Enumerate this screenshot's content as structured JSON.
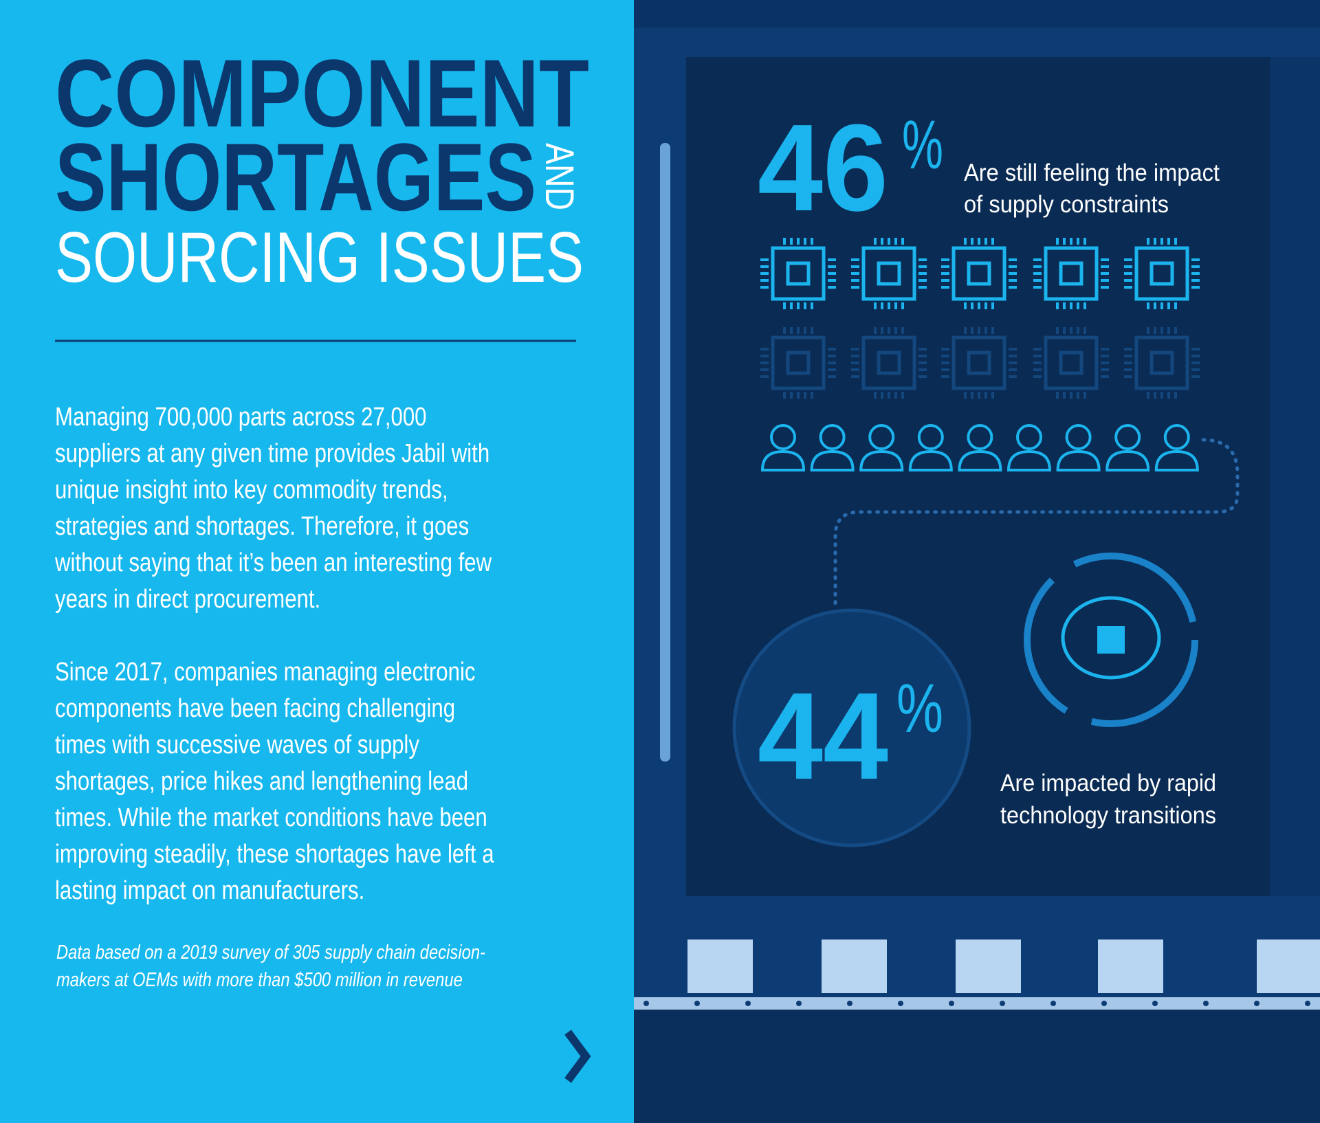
{
  "title": {
    "line1": "COMPONENT",
    "line2": "SHORTAGES",
    "and": "AND",
    "line3": "SOURCING ISSUES"
  },
  "body": [
    [
      "Managing 700,000 parts across 27,000",
      "suppliers at any given time provides Jabil with",
      "unique insight into key commodity trends,",
      "strategies and shortages. Therefore, it goes",
      "without saying that it’s been an interesting few",
      "years in direct procurement."
    ],
    [
      "Since 2017, companies managing electronic",
      "components have been facing challenging",
      "times with successive waves of supply",
      "shortages, price hikes and lengthening lead",
      "times. While the market conditions have been",
      "improving steadily, these shortages have left a",
      "lasting impact on manufacturers."
    ]
  ],
  "footnote": [
    "Data based on a 2019 survey of 305 supply chain decision-",
    "makers at OEMs with more than $500 million in revenue"
  ],
  "stats": [
    {
      "number": 46,
      "unit": "%",
      "text": [
        "Are still feeling the impact",
        "of supply constraints"
      ]
    },
    {
      "number": 44,
      "unit": "%",
      "text": [
        "Are impacted by rapid",
        "technology transitions"
      ]
    }
  ]
}
